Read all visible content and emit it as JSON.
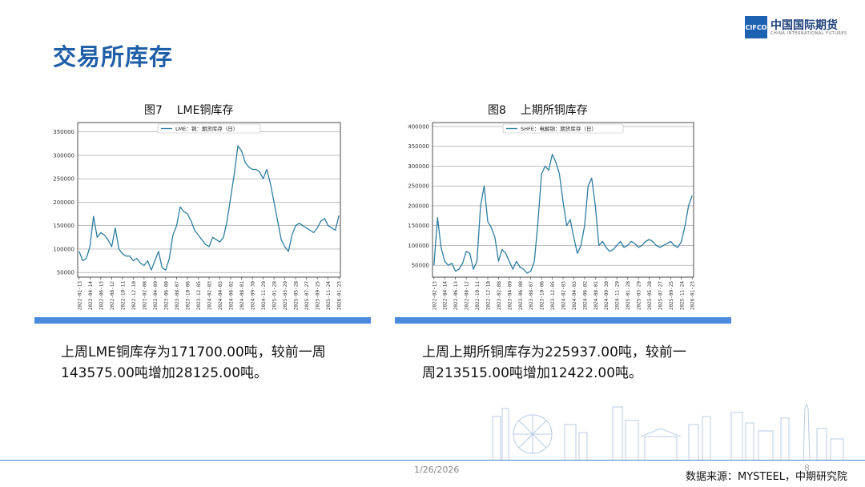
{
  "page": {
    "title": "交易所库存",
    "logo_abbr": "CIFCO",
    "logo_name": "中国国际期货",
    "logo_sub": "CHINA INTERNATIONAL FUTURES",
    "date": "1/26/2026",
    "page_number": "8",
    "source": "数据来源：MYSTEEL，中期研究院"
  },
  "left": {
    "caption": "上周LME铜库存为171700.00吨，较前一周143575.00吨增加28125.00吨。"
  },
  "right": {
    "caption": "上周上期所铜库存为225937.00吨，较前一周213515.00吨增加12422.00吨。"
  },
  "chart_data": [
    {
      "type": "line",
      "title": "图7    LME铜库存",
      "legend": "LME：铜：期货库存（日）",
      "legend_position": "top-center",
      "grid": true,
      "ylim": [
        40000,
        370000
      ],
      "yticks": [
        50000,
        100000,
        150000,
        200000,
        250000,
        300000,
        350000
      ],
      "x_tick_labels": [
        "2022-02-13",
        "2022-04-14",
        "2022-06-13",
        "2022-08-12",
        "2022-10-11",
        "2022-12-10",
        "2023-02-08",
        "2023-04-09",
        "2023-06-08",
        "2023-08-07",
        "2023-10-06",
        "2023-12-05",
        "2024-02-03",
        "2024-04-03",
        "2024-06-02",
        "2024-08-01",
        "2024-09-30",
        "2024-11-29",
        "2025-01-28",
        "2025-03-29",
        "2025-05-28",
        "2025-07-27",
        "2025-09-25",
        "2025-11-24",
        "2026-01-23"
      ],
      "series": [
        {
          "color": "#2e7da1",
          "x": [
            "2022-02-13",
            "2022-03-05",
            "2022-03-25",
            "2022-04-14",
            "2022-05-04",
            "2022-05-24",
            "2022-06-13",
            "2022-07-03",
            "2022-07-23",
            "2022-08-12",
            "2022-09-01",
            "2022-09-21",
            "2022-10-11",
            "2022-10-31",
            "2022-11-20",
            "2022-12-10",
            "2022-12-30",
            "2023-01-19",
            "2023-02-08",
            "2023-02-28",
            "2023-03-20",
            "2023-04-09",
            "2023-04-29",
            "2023-05-19",
            "2023-06-08",
            "2023-06-28",
            "2023-07-18",
            "2023-08-07",
            "2023-08-27",
            "2023-09-16",
            "2023-10-06",
            "2023-10-26",
            "2023-11-15",
            "2023-12-05",
            "2023-12-25",
            "2024-01-14",
            "2024-02-03",
            "2024-02-23",
            "2024-03-14",
            "2024-04-03",
            "2024-04-23",
            "2024-05-13",
            "2024-06-02",
            "2024-06-22",
            "2024-07-12",
            "2024-08-01",
            "2024-08-21",
            "2024-09-10",
            "2024-09-30",
            "2024-10-20",
            "2024-11-09",
            "2024-11-29",
            "2024-12-19",
            "2025-01-08",
            "2025-01-28",
            "2025-02-17",
            "2025-03-09",
            "2025-03-29",
            "2025-04-18",
            "2025-05-08",
            "2025-05-28",
            "2025-06-17",
            "2025-07-07",
            "2025-07-27",
            "2025-08-16",
            "2025-09-05",
            "2025-09-25",
            "2025-10-15",
            "2025-11-04",
            "2025-11-24",
            "2025-12-14",
            "2026-01-03",
            "2026-01-23"
          ],
          "values": [
            95000,
            75000,
            80000,
            105000,
            170000,
            125000,
            135000,
            130000,
            120000,
            105000,
            145000,
            100000,
            90000,
            85000,
            85000,
            75000,
            80000,
            70000,
            65000,
            75000,
            55000,
            75000,
            95000,
            60000,
            55000,
            80000,
            130000,
            150000,
            190000,
            180000,
            175000,
            160000,
            140000,
            130000,
            120000,
            110000,
            105000,
            125000,
            120000,
            115000,
            125000,
            160000,
            210000,
            260000,
            320000,
            310000,
            285000,
            275000,
            270000,
            270000,
            265000,
            250000,
            270000,
            240000,
            200000,
            160000,
            120000,
            105000,
            95000,
            130000,
            150000,
            155000,
            150000,
            145000,
            140000,
            135000,
            145000,
            160000,
            165000,
            150000,
            145000,
            140000,
            171700
          ]
        }
      ]
    },
    {
      "type": "line",
      "title": "图8    上期所铜库存",
      "legend": "SHFE：电解铜：期货库存（日）",
      "legend_position": "top-center",
      "grid": true,
      "ylim": [
        20000,
        410000
      ],
      "yticks": [
        50000,
        100000,
        150000,
        200000,
        250000,
        300000,
        350000,
        400000
      ],
      "x_tick_labels": [
        "2022-02-13",
        "2022-04-14",
        "2022-06-13",
        "2022-08-12",
        "2022-10-11",
        "2022-12-10",
        "2023-02-08",
        "2023-04-09",
        "2023-06-08",
        "2023-08-07",
        "2023-10-06",
        "2023-12-05",
        "2024-02-03",
        "2024-04-03",
        "2024-06-02",
        "2024-08-01",
        "2024-09-30",
        "2024-11-29",
        "2025-01-28",
        "2025-03-29",
        "2025-05-28",
        "2025-07-27",
        "2025-09-25",
        "2025-11-24",
        "2026-01-23"
      ],
      "series": [
        {
          "color": "#2e7da1",
          "x": [
            "2022-02-13",
            "2022-03-05",
            "2022-03-25",
            "2022-04-14",
            "2022-05-04",
            "2022-05-24",
            "2022-06-13",
            "2022-07-03",
            "2022-07-23",
            "2022-08-12",
            "2022-09-01",
            "2022-09-21",
            "2022-10-11",
            "2022-10-31",
            "2022-11-20",
            "2022-12-10",
            "2022-12-30",
            "2023-01-19",
            "2023-02-08",
            "2023-02-28",
            "2023-03-20",
            "2023-04-09",
            "2023-04-29",
            "2023-05-19",
            "2023-06-08",
            "2023-06-28",
            "2023-07-18",
            "2023-08-07",
            "2023-08-27",
            "2023-09-16",
            "2023-10-06",
            "2023-10-26",
            "2023-11-15",
            "2023-12-05",
            "2023-12-25",
            "2024-01-14",
            "2024-02-03",
            "2024-02-23",
            "2024-03-14",
            "2024-04-03",
            "2024-04-23",
            "2024-05-13",
            "2024-06-02",
            "2024-06-22",
            "2024-07-12",
            "2024-08-01",
            "2024-08-21",
            "2024-09-10",
            "2024-09-30",
            "2024-10-20",
            "2024-11-09",
            "2024-11-29",
            "2024-12-19",
            "2025-01-08",
            "2025-01-28",
            "2025-02-17",
            "2025-03-09",
            "2025-03-29",
            "2025-04-18",
            "2025-05-08",
            "2025-05-28",
            "2025-06-17",
            "2025-07-07",
            "2025-07-27",
            "2025-08-16",
            "2025-09-05",
            "2025-09-25",
            "2025-10-15",
            "2025-11-04",
            "2025-11-24",
            "2025-12-14",
            "2026-01-03",
            "2026-01-23"
          ],
          "values": [
            50000,
            170000,
            95000,
            60000,
            50000,
            55000,
            35000,
            40000,
            55000,
            85000,
            80000,
            40000,
            60000,
            200000,
            250000,
            160000,
            145000,
            120000,
            60000,
            90000,
            80000,
            60000,
            40000,
            60000,
            45000,
            40000,
            30000,
            35000,
            60000,
            160000,
            280000,
            300000,
            290000,
            330000,
            310000,
            280000,
            210000,
            150000,
            165000,
            120000,
            80000,
            100000,
            150000,
            250000,
            270000,
            200000,
            100000,
            110000,
            95000,
            85000,
            90000,
            100000,
            110000,
            95000,
            100000,
            110000,
            105000,
            95000,
            100000,
            110000,
            115000,
            110000,
            100000,
            95000,
            100000,
            105000,
            110000,
            100000,
            95000,
            110000,
            150000,
            200000,
            225937
          ]
        }
      ]
    }
  ]
}
